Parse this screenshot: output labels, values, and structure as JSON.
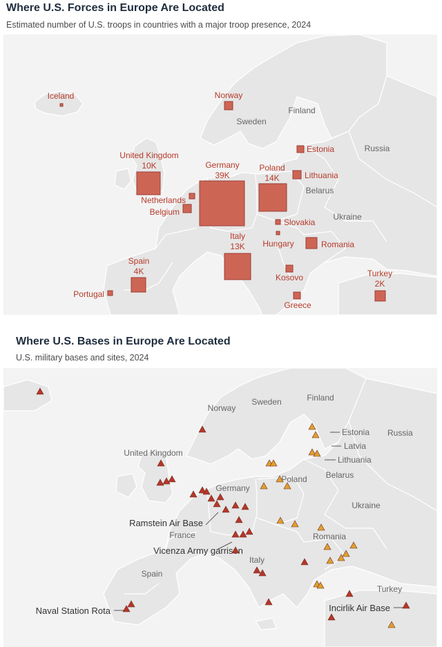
{
  "map1": {
    "title": "Where U.S. Forces in Europe Are Located",
    "subtitle": "Estimated number of U.S. troops in countries with a major troop presence, 2024",
    "country_labels": [
      "Finland",
      "Sweden",
      "Russia",
      "Belarus",
      "Ukraine"
    ],
    "troop_countries": [
      {
        "name": "Iceland",
        "troops": ""
      },
      {
        "name": "Norway",
        "troops": ""
      },
      {
        "name": "Estonia",
        "troops": ""
      },
      {
        "name": "Lithuania",
        "troops": ""
      },
      {
        "name": "United Kingdom",
        "troops": "10K"
      },
      {
        "name": "Germany",
        "troops": "39K"
      },
      {
        "name": "Poland",
        "troops": "14K"
      },
      {
        "name": "Netherlands",
        "troops": ""
      },
      {
        "name": "Belgium",
        "troops": ""
      },
      {
        "name": "Slovakia",
        "troops": ""
      },
      {
        "name": "Hungary",
        "troops": ""
      },
      {
        "name": "Romania",
        "troops": ""
      },
      {
        "name": "Italy",
        "troops": "13K"
      },
      {
        "name": "Spain",
        "troops": "4K"
      },
      {
        "name": "Kosovo",
        "troops": ""
      },
      {
        "name": "Portugal",
        "troops": ""
      },
      {
        "name": "Greece",
        "troops": ""
      },
      {
        "name": "Turkey",
        "troops": "2K"
      }
    ],
    "marker_color": "#cd6555"
  },
  "map2": {
    "title": "Where U.S. Bases in Europe Are Located",
    "subtitle": "U.S. military bases and sites, 2024",
    "country_labels": [
      "Sweden",
      "Finland",
      "Norway",
      "Estonia",
      "Russia",
      "Latvia",
      "Lithuania",
      "United Kingdom",
      "Belarus",
      "Poland",
      "Germany",
      "Ukraine",
      "France",
      "Romania",
      "Italy",
      "Spain",
      "Turkey"
    ],
    "callouts": [
      "Ramstein Air Base",
      "Vicenza Army garrison",
      "Naval Station Rota",
      "Incirlik Air Base"
    ],
    "colors": {
      "base_west": "#b5372a",
      "base_east": "#e0a030"
    }
  }
}
